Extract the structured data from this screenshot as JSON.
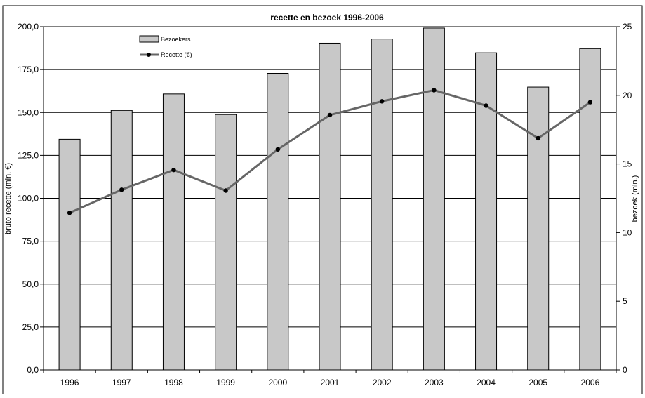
{
  "chart_data": {
    "type": "bar",
    "title": "recette en bezoek 1996-2006",
    "categories": [
      "1996",
      "1997",
      "1998",
      "1999",
      "2000",
      "2001",
      "2002",
      "2003",
      "2004",
      "2005",
      "2006"
    ],
    "series": [
      {
        "name": "Bezoekers",
        "kind": "bar",
        "axis": "right",
        "values": [
          16.8,
          18.9,
          20.1,
          18.6,
          21.6,
          23.8,
          24.1,
          24.9,
          23.1,
          20.6,
          23.4
        ]
      },
      {
        "name": "Recette (€)",
        "kind": "line",
        "axis": "left",
        "values": [
          91.5,
          105.0,
          116.5,
          104.5,
          128.5,
          148.5,
          156.5,
          163.0,
          154.0,
          135.0,
          156.0
        ]
      }
    ],
    "ylabel": "bruto recette (mln. €)",
    "ylabel_right": "bezoek (mln.)",
    "ylim": [
      0,
      200
    ],
    "ylim_right": [
      0,
      25
    ],
    "yticks": [
      "0,0",
      "25,0",
      "50,0",
      "75,0",
      "100,0",
      "125,0",
      "150,0",
      "175,0",
      "200,0"
    ],
    "yticks_right": [
      "0",
      "5",
      "10",
      "15",
      "20",
      "25"
    ],
    "grid": true,
    "legend": "top-left",
    "colors": {
      "bar_fill": "#c8c8c8",
      "bar_stroke": "#000000",
      "line": "#666666",
      "marker": "#000000"
    }
  }
}
